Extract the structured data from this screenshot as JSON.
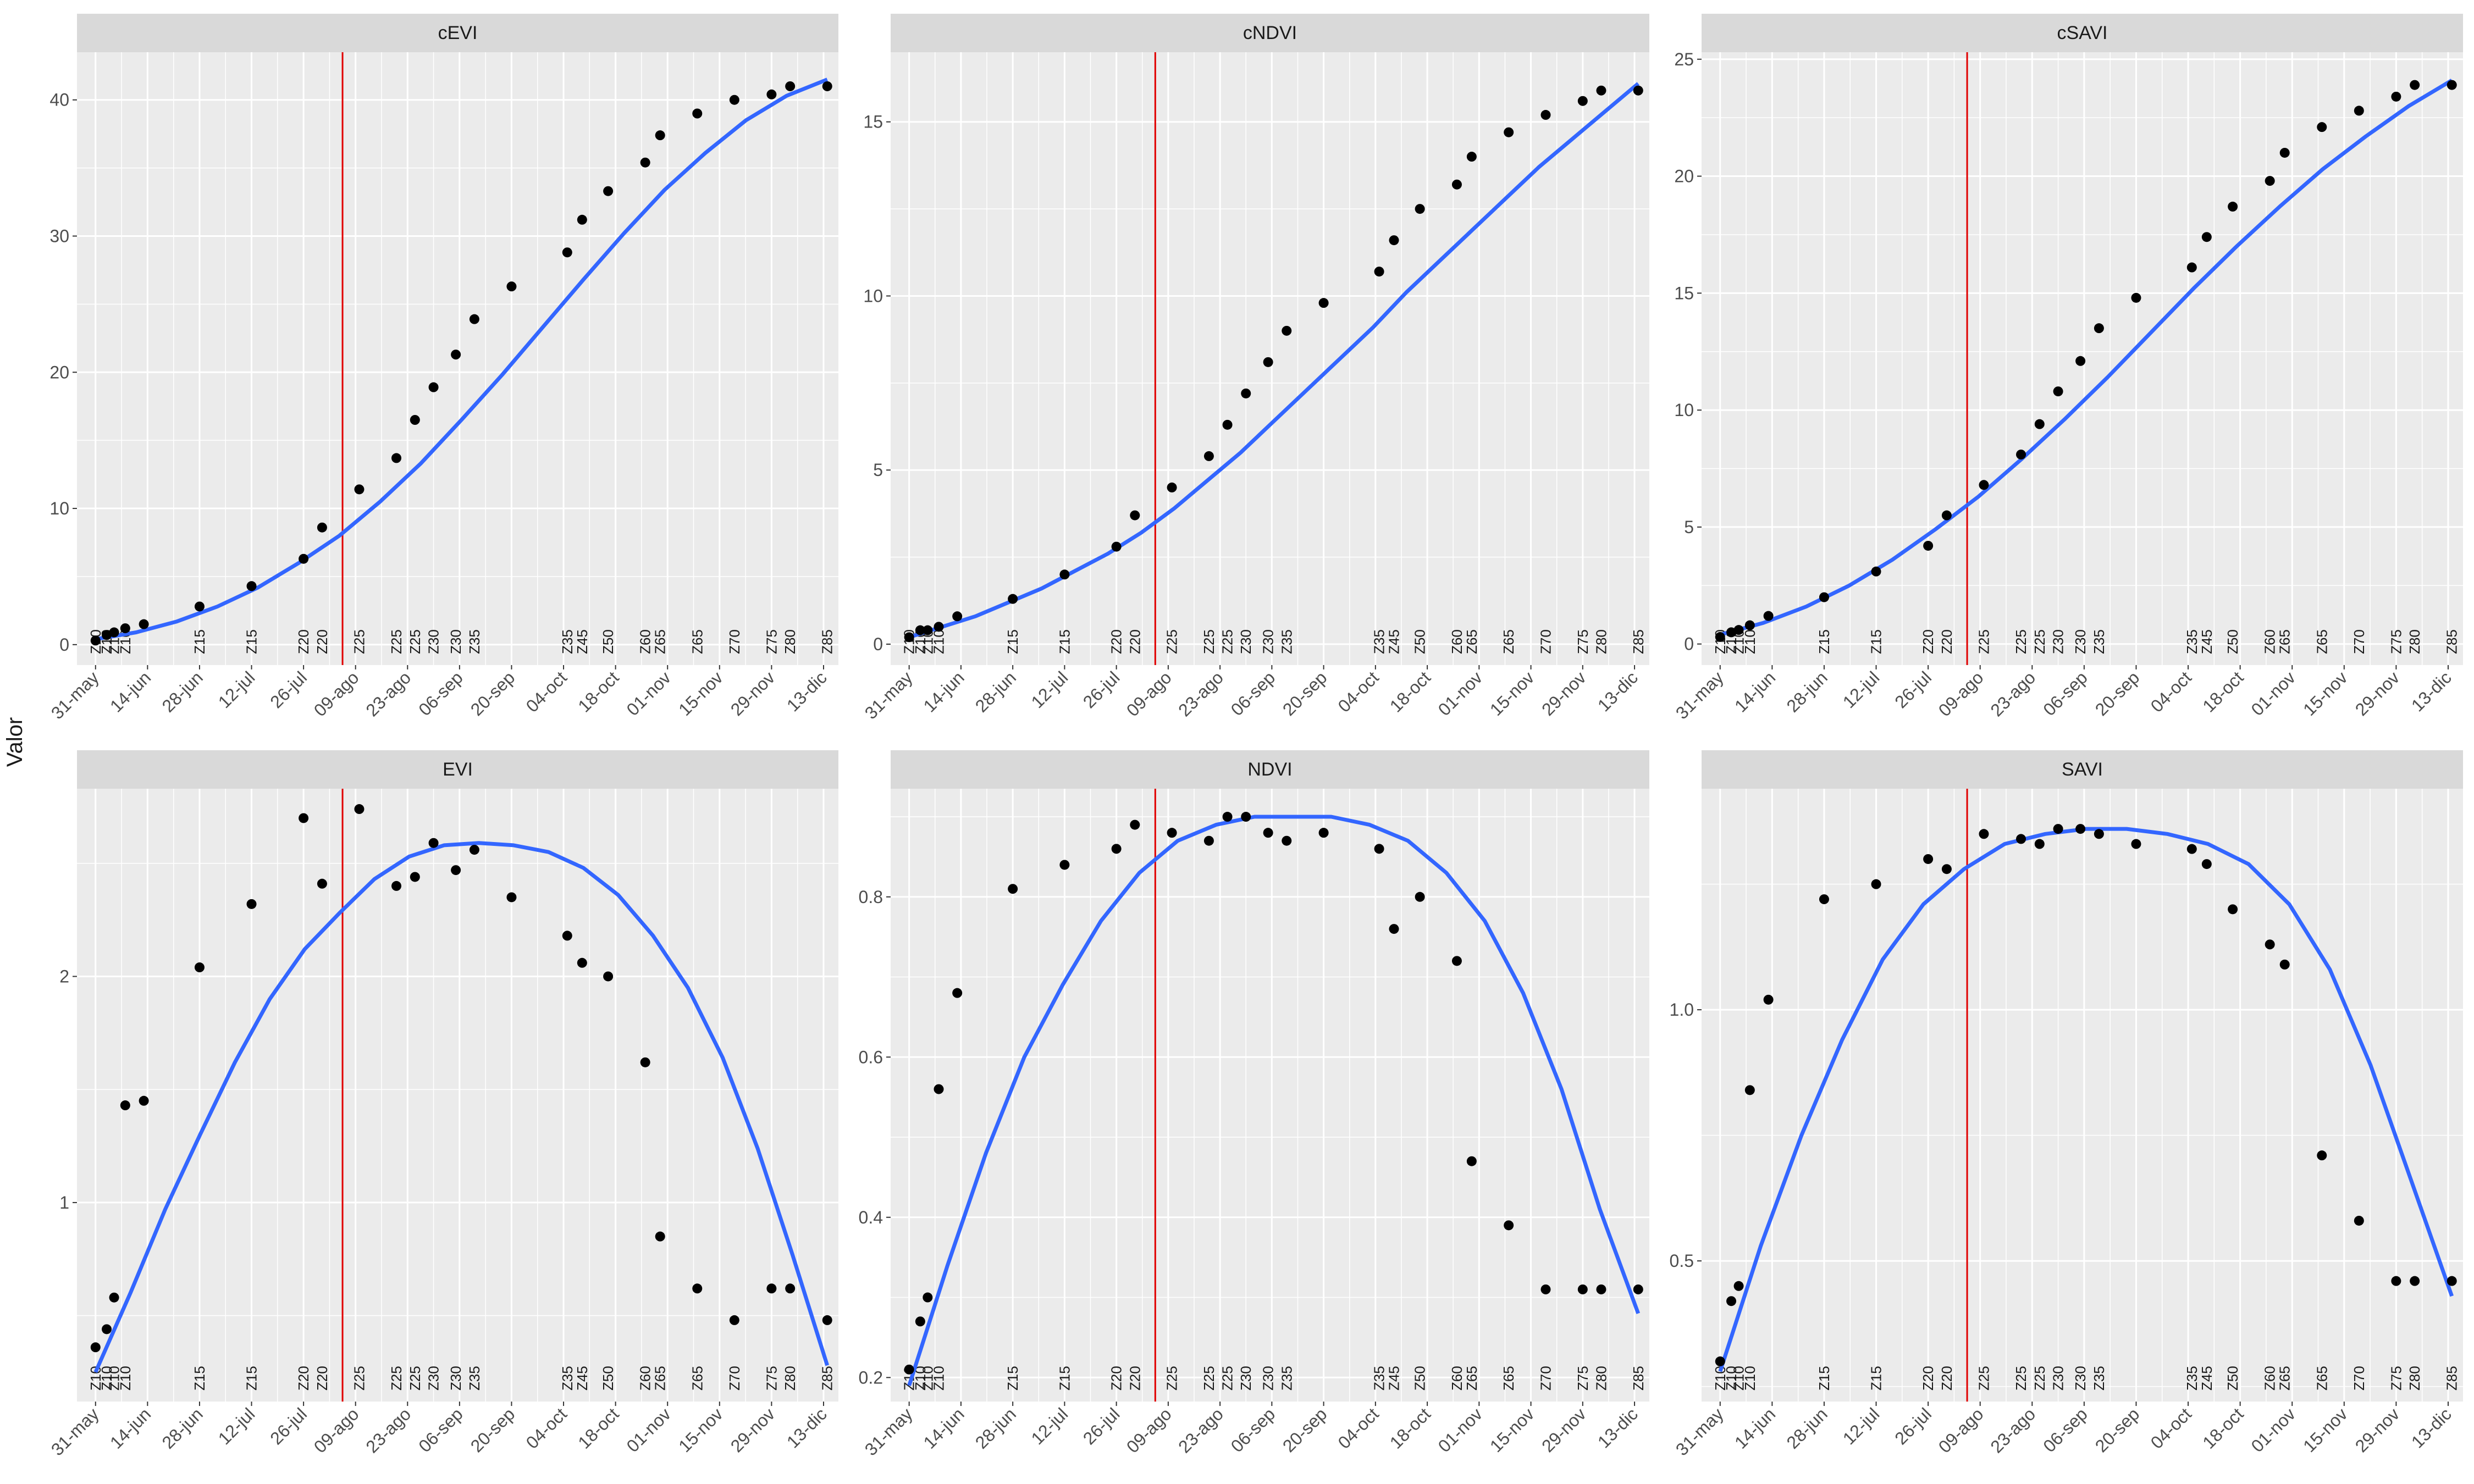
{
  "chart_data": {
    "type": "scatter",
    "ylabel": "Valor",
    "xlabel": "",
    "x_tick_labels": [
      "31-may",
      "14-jun",
      "28-jun",
      "12-jul",
      "26-jul",
      "09-ago",
      "23-ago",
      "06-sep",
      "20-sep",
      "04-oct",
      "18-oct",
      "01-nov",
      "15-nov",
      "29-nov",
      "13-dic"
    ],
    "x_ticks_day": [
      0,
      14,
      28,
      42,
      56,
      70,
      84,
      98,
      112,
      126,
      140,
      154,
      168,
      182,
      196
    ],
    "xlim": [
      -5,
      200
    ],
    "vline_day": 66.5,
    "colors": {
      "points": "#000000",
      "smooth": "#3366ff",
      "vline": "#e00000",
      "panel": "#ebebeb",
      "grid": "#ffffff",
      "strip": "#d9d9d9"
    },
    "dates": [
      "31-may",
      "03-jun",
      "05-jun",
      "08-jun",
      "13-jun",
      "28-jun",
      "12-jul",
      "26-jul",
      "31-jul",
      "10-ago",
      "20-ago",
      "25-ago",
      "30-ago",
      "05-sep",
      "10-sep",
      "20-sep",
      "04-oct",
      "08-oct",
      "15-oct",
      "25-oct",
      "29-oct",
      "08-nov",
      "18-nov",
      "28-nov",
      "03-dic",
      "13-dic"
    ],
    "day": [
      0,
      3,
      5,
      8,
      13,
      28,
      42,
      56,
      61,
      71,
      81,
      86,
      91,
      97,
      102,
      112,
      127,
      131,
      138,
      148,
      152,
      162,
      172,
      182,
      187,
      197
    ],
    "stages": [
      "Z10",
      "Z10",
      "Z10",
      "Z10",
      "",
      "Z15",
      "Z15",
      "Z20",
      "Z20",
      "Z25",
      "Z25",
      "Z25",
      "Z30",
      "Z30",
      "Z35",
      "",
      "Z35",
      "Z45",
      "Z50",
      "Z60",
      "Z65",
      "Z65",
      "Z70",
      "Z75",
      "Z80",
      "Z85"
    ],
    "facets": [
      {
        "name": "cEVI",
        "ylim": [
          -1.5,
          43.5
        ],
        "yticks": [
          0,
          10,
          20,
          30,
          40
        ],
        "ytick_labels": [
          "0",
          "10",
          "20",
          "30",
          "40"
        ],
        "values": [
          0.3,
          0.7,
          0.9,
          1.2,
          1.5,
          2.8,
          4.3,
          6.3,
          8.6,
          11.4,
          13.7,
          16.5,
          18.9,
          21.3,
          23.9,
          26.3,
          28.8,
          31.2,
          33.3,
          35.4,
          37.4,
          39.0,
          40.0,
          40.4,
          41.0,
          41.0
        ],
        "smooth": [
          0.4,
          0.9,
          1.7,
          2.8,
          4.2,
          6.0,
          8.0,
          10.5,
          13.3,
          16.5,
          19.8,
          23.3,
          26.8,
          30.2,
          33.4,
          36.1,
          38.5,
          40.3,
          41.5
        ]
      },
      {
        "name": "cNDVI",
        "ylim": [
          -0.6,
          17.0
        ],
        "yticks": [
          0,
          5,
          10,
          15
        ],
        "ytick_labels": [
          "0",
          "5",
          "10",
          "15"
        ],
        "values": [
          0.2,
          0.4,
          0.4,
          0.5,
          0.8,
          1.3,
          2.0,
          2.8,
          3.7,
          4.5,
          5.4,
          6.3,
          7.2,
          8.1,
          9.0,
          9.8,
          10.7,
          11.6,
          12.5,
          13.2,
          14.0,
          14.7,
          15.2,
          15.6,
          15.9,
          15.9
        ],
        "smooth": [
          0.2,
          0.5,
          0.8,
          1.2,
          1.6,
          2.1,
          2.6,
          3.2,
          3.9,
          4.7,
          5.5,
          6.4,
          7.3,
          8.2,
          9.1,
          10.1,
          11.0,
          11.9,
          12.8,
          13.7,
          14.5,
          15.3,
          16.1
        ]
      },
      {
        "name": "cSAVI",
        "ylim": [
          -0.9,
          25.3
        ],
        "yticks": [
          0,
          5,
          10,
          15,
          20,
          25
        ],
        "ytick_labels": [
          "0",
          "5",
          "10",
          "15",
          "20",
          "25"
        ],
        "values": [
          0.3,
          0.5,
          0.6,
          0.8,
          1.2,
          2.0,
          3.1,
          4.2,
          5.5,
          6.8,
          8.1,
          9.4,
          10.8,
          12.1,
          13.5,
          14.8,
          16.1,
          17.4,
          18.7,
          19.8,
          21.0,
          22.1,
          22.8,
          23.4,
          23.9,
          23.9
        ],
        "smooth": [
          0.4,
          0.9,
          1.6,
          2.5,
          3.6,
          4.9,
          6.3,
          7.9,
          9.6,
          11.4,
          13.3,
          15.2,
          17.0,
          18.7,
          20.3,
          21.7,
          23.0,
          24.1
        ]
      },
      {
        "name": "EVI",
        "ylim": [
          0.12,
          2.83
        ],
        "yticks": [
          1,
          2
        ],
        "ytick_labels": [
          "1",
          "2"
        ],
        "values": [
          0.36,
          0.44,
          0.58,
          1.43,
          1.45,
          2.04,
          2.32,
          2.7,
          2.41,
          2.74,
          2.4,
          2.44,
          2.59,
          2.47,
          2.56,
          2.35,
          2.18,
          2.06,
          2.0,
          1.62,
          0.85,
          0.62,
          0.48,
          0.62,
          0.62,
          0.48
        ],
        "smooth": [
          0.25,
          0.6,
          0.97,
          1.3,
          1.62,
          1.9,
          2.12,
          2.28,
          2.43,
          2.53,
          2.58,
          2.59,
          2.58,
          2.55,
          2.48,
          2.36,
          2.18,
          1.95,
          1.64,
          1.24,
          0.77,
          0.28
        ]
      },
      {
        "name": "NDVI",
        "ylim": [
          0.17,
          0.935
        ],
        "yticks": [
          0.2,
          0.4,
          0.6,
          0.8
        ],
        "ytick_labels": [
          "0.2",
          "0.4",
          "0.6",
          "0.8"
        ],
        "values": [
          0.21,
          0.27,
          0.3,
          0.56,
          0.68,
          0.81,
          0.84,
          0.86,
          0.89,
          0.88,
          0.87,
          0.9,
          0.9,
          0.88,
          0.87,
          0.88,
          0.86,
          0.76,
          0.8,
          0.72,
          0.47,
          0.39,
          0.31,
          0.31,
          0.31,
          0.31
        ],
        "smooth": [
          0.19,
          0.34,
          0.48,
          0.6,
          0.69,
          0.77,
          0.83,
          0.87,
          0.89,
          0.9,
          0.9,
          0.9,
          0.89,
          0.87,
          0.83,
          0.77,
          0.68,
          0.56,
          0.41,
          0.28
        ]
      },
      {
        "name": "SAVI",
        "ylim": [
          0.22,
          1.44
        ],
        "yticks": [
          0.5,
          1.0
        ],
        "ytick_labels": [
          "0.5",
          "1.0"
        ],
        "values": [
          0.3,
          0.42,
          0.45,
          0.84,
          1.02,
          1.22,
          1.25,
          1.3,
          1.28,
          1.35,
          1.34,
          1.33,
          1.36,
          1.36,
          1.35,
          1.33,
          1.32,
          1.29,
          1.2,
          1.13,
          1.09,
          0.71,
          0.58,
          0.46,
          0.46,
          0.46
        ],
        "smooth": [
          0.28,
          0.53,
          0.75,
          0.94,
          1.1,
          1.21,
          1.28,
          1.33,
          1.35,
          1.36,
          1.36,
          1.35,
          1.33,
          1.29,
          1.21,
          1.08,
          0.89,
          0.66,
          0.43
        ]
      }
    ]
  }
}
